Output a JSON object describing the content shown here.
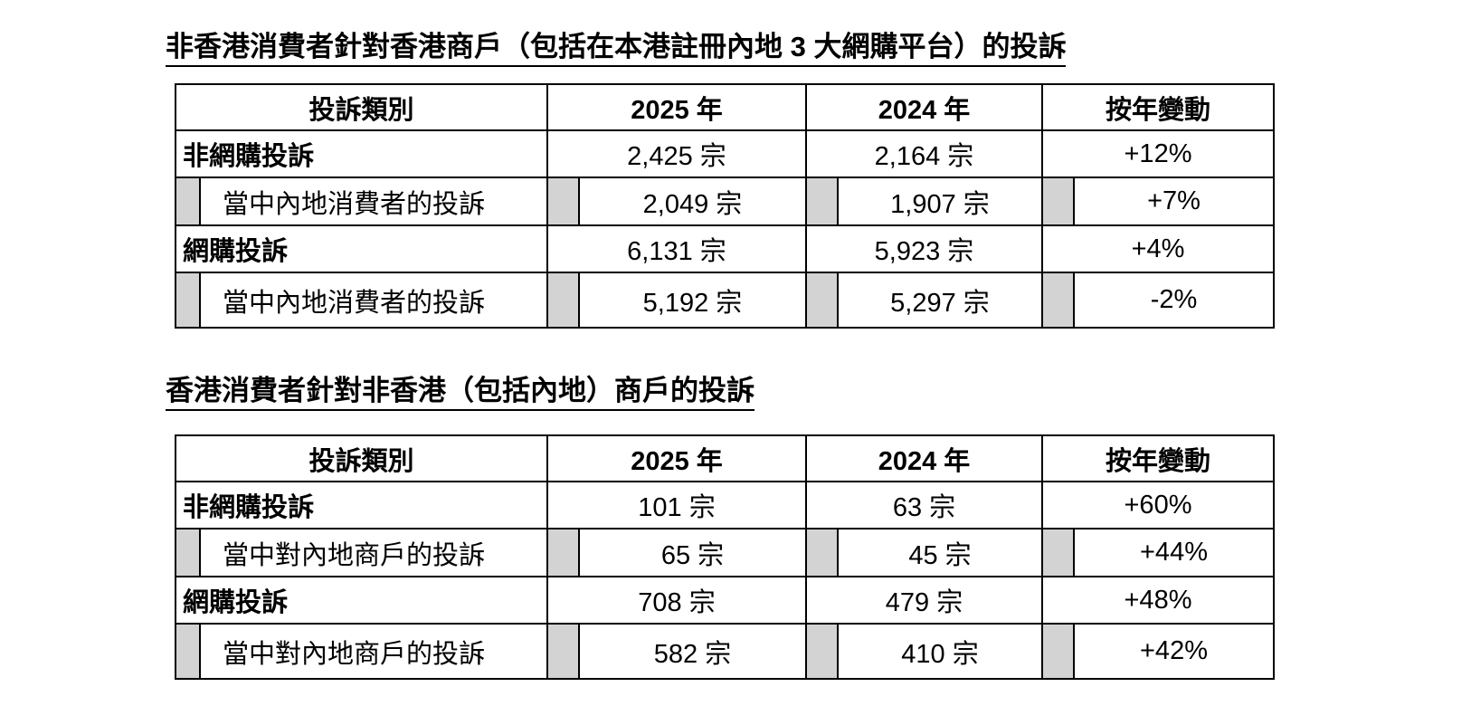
{
  "colors": {
    "shade": "#d3d3d3",
    "border": "#000000",
    "text": "#000000"
  },
  "tables": [
    {
      "title": "非香港消費者針對香港商戶（包括在本港註冊內地 3 大網購平台）的投訴",
      "headers": [
        "投訴類別",
        "2025 年",
        "2024 年",
        "按年變動"
      ],
      "rows": [
        {
          "label": "非網購投訴",
          "y2025": "2,425 宗",
          "y2024": "2,164 宗",
          "change": "+12%"
        },
        {
          "label": "當中內地消費者的投訴",
          "y2025": "2,049 宗",
          "y2024": "1,907 宗",
          "change": "+7%"
        },
        {
          "label": "網購投訴",
          "y2025": "6,131 宗",
          "y2024": "5,923 宗",
          "change": "+4%"
        },
        {
          "label": "當中內地消費者的投訴",
          "y2025": "5,192 宗",
          "y2024": "5,297 宗",
          "change": "-2%"
        }
      ]
    },
    {
      "title": "香港消費者針對非香港（包括內地）商戶的投訴",
      "headers": [
        "投訴類別",
        "2025 年",
        "2024 年",
        "按年變動"
      ],
      "rows": [
        {
          "label": "非網購投訴",
          "y2025": "101 宗",
          "y2024": "63 宗",
          "change": "+60%"
        },
        {
          "label": "當中對內地商戶的投訴",
          "y2025": "65 宗",
          "y2024": "45 宗",
          "change": "+44%"
        },
        {
          "label": "網購投訴",
          "y2025": "708 宗",
          "y2024": "479 宗",
          "change": "+48%"
        },
        {
          "label": "當中對內地商戶的投訴",
          "y2025": "582 宗",
          "y2024": "410 宗",
          "change": "+42%"
        }
      ]
    }
  ]
}
